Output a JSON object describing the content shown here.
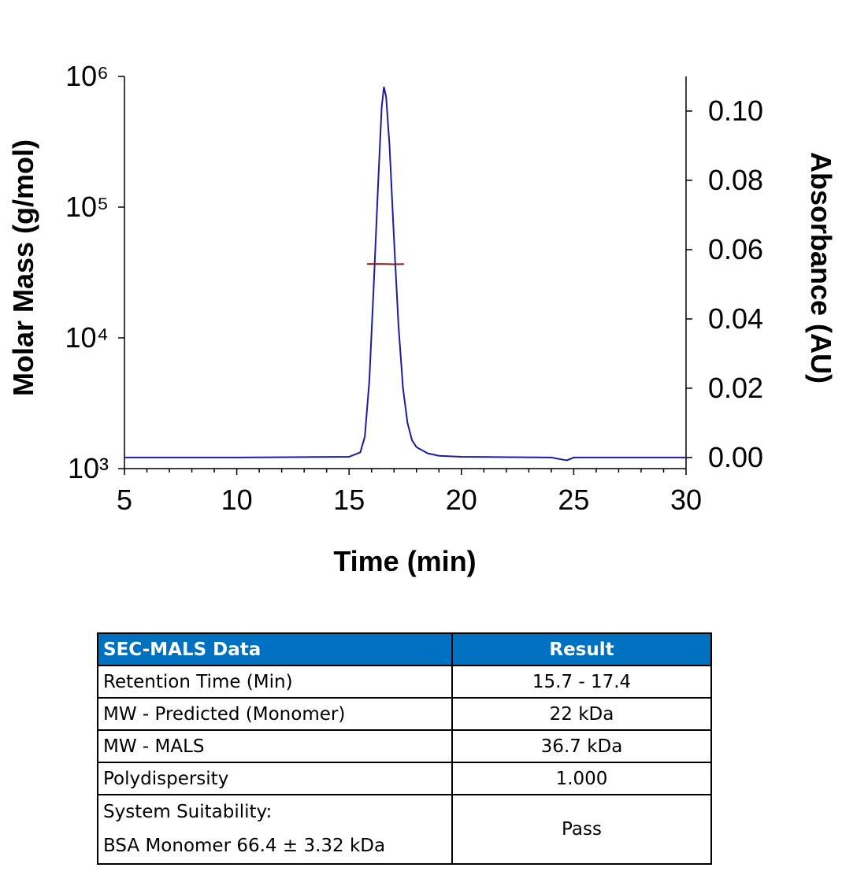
{
  "chart_data": {
    "type": "line",
    "xlabel": "Time (min)",
    "ylabel": "Molar Mass (g/mol)",
    "y2label": "Absorbance (AU)",
    "xlim": [
      5,
      30
    ],
    "xticks": [
      5,
      10,
      15,
      20,
      25,
      30
    ],
    "xminorticks": [
      6,
      7,
      8,
      9,
      11,
      12,
      13,
      14,
      16,
      17,
      18,
      19,
      21,
      22,
      23,
      24,
      26,
      27,
      28,
      29
    ],
    "ylim": [
      1000,
      1000000
    ],
    "ylog": true,
    "yticks": [
      {
        "value": 1000,
        "label": "10³"
      },
      {
        "value": 10000,
        "label": "10⁴"
      },
      {
        "value": 100000,
        "label": "10⁵"
      },
      {
        "value": 1000000,
        "label": "10⁶"
      }
    ],
    "y2lim": [
      -0.0032,
      0.11
    ],
    "y2ticks": [
      {
        "value": 0,
        "label": "0.00"
      },
      {
        "value": 0.02,
        "label": "0.02"
      },
      {
        "value": 0.04,
        "label": "0.04"
      },
      {
        "value": 0.06,
        "label": "0.06"
      },
      {
        "value": 0.08,
        "label": "0.08"
      },
      {
        "value": 0.1,
        "label": "0.10"
      }
    ],
    "series": [
      {
        "color": "#1c1ca0",
        "axis": "y2",
        "x": [
          5,
          10,
          15,
          15.5,
          15.7,
          15.9,
          16.1,
          16.3,
          16.45,
          16.55,
          16.65,
          16.8,
          17.0,
          17.2,
          17.4,
          17.6,
          17.8,
          18.0,
          18.5,
          19.0,
          20,
          24,
          24.5,
          24.7,
          25,
          30
        ],
        "values": [
          0,
          0,
          0.0002,
          0.0015,
          0.006,
          0.022,
          0.05,
          0.08,
          0.101,
          0.107,
          0.104,
          0.09,
          0.063,
          0.038,
          0.02,
          0.01,
          0.005,
          0.003,
          0.0012,
          0.0005,
          0.0002,
          0,
          -0.0006,
          -0.0008,
          0,
          0
        ]
      },
      {
        "color": "#8b1a1a",
        "x": [
          15.8,
          16.2,
          16.6,
          17.0,
          17.45
        ],
        "values": [
          36700,
          36800,
          36700,
          36600,
          36700
        ]
      }
    ]
  },
  "table": {
    "header": [
      "SEC-MALS Data",
      "Result"
    ],
    "rows": [
      [
        "Retention Time (Min)",
        "15.7 - 17.4"
      ],
      [
        "MW - Predicted (Monomer)",
        "22 kDa"
      ],
      [
        "MW - MALS",
        "36.7 kDa"
      ],
      [
        "Polydispersity",
        "1.000"
      ],
      [
        [
          "System Suitability:",
          "BSA Monomer 66.4 ± 3.32 kDa"
        ],
        "Pass"
      ]
    ]
  }
}
